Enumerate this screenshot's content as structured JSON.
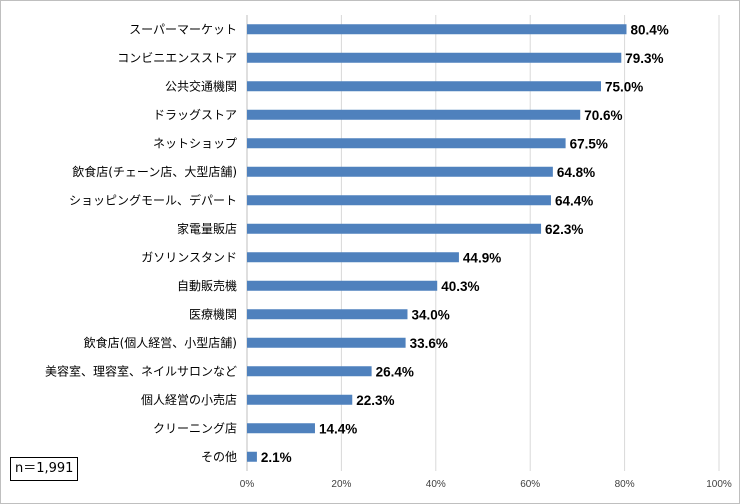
{
  "chart_data": {
    "type": "bar",
    "orientation": "horizontal",
    "categories": [
      "スーパーマーケット",
      "コンビニエンスストア",
      "公共交通機関",
      "ドラッグストア",
      "ネットショップ",
      "飲食店(チェーン店、大型店舗)",
      "ショッピングモール、デパート",
      "家電量販店",
      "ガソリンスタンド",
      "自動販売機",
      "医療機関",
      "飲食店(個人経営、小型店舗)",
      "美容室、理容室、ネイルサロンなど",
      "個人経営の小売店",
      "クリーニング店",
      "その他"
    ],
    "values": [
      80.4,
      79.3,
      75.0,
      70.6,
      67.5,
      64.8,
      64.4,
      62.3,
      44.9,
      40.3,
      34.0,
      33.6,
      26.4,
      22.3,
      14.4,
      2.1
    ],
    "value_labels": [
      "80.4%",
      "79.3%",
      "75.0%",
      "70.6%",
      "67.5%",
      "64.8%",
      "64.4%",
      "62.3%",
      "44.9%",
      "40.3%",
      "34.0%",
      "33.6%",
      "26.4%",
      "22.3%",
      "14.4%",
      "2.1%"
    ],
    "xlim": [
      0,
      100
    ],
    "x_ticks": [
      0,
      20,
      40,
      60,
      80,
      100
    ],
    "x_tick_labels": [
      "0%",
      "20%",
      "40%",
      "60%",
      "80%",
      "100%"
    ],
    "grid": true,
    "bar_color": "#4f81bd",
    "grid_color": "#d9d9d9",
    "title": "",
    "xlabel": "",
    "ylabel": ""
  },
  "sample_note": "n＝1,991"
}
